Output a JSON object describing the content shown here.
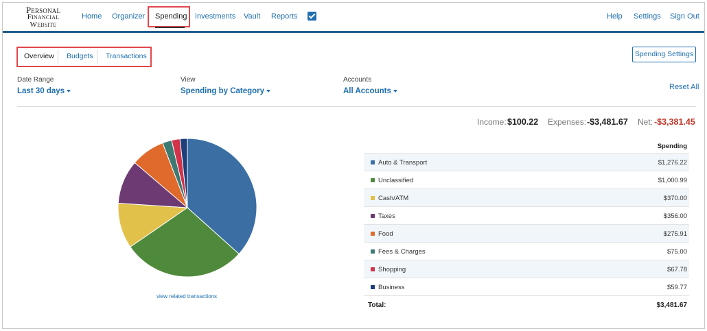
{
  "logo": {
    "line1": "Personal",
    "line2": "Financial",
    "line3": "Website"
  },
  "nav": {
    "home": "Home",
    "organizer": "Organizer",
    "spending": "Spending",
    "investments": "Investments",
    "vault": "Vault",
    "reports": "Reports",
    "help": "Help",
    "settings": "Settings",
    "signout": "Sign Out"
  },
  "subtabs": {
    "overview": "Overview",
    "budgets": "Budgets",
    "transactions": "Transactions"
  },
  "spending_settings": "Spending Settings",
  "filters": {
    "date_range": {
      "label": "Date Range",
      "value": "Last 30 days"
    },
    "view": {
      "label": "View",
      "value": "Spending by Category"
    },
    "accounts": {
      "label": "Accounts",
      "value": "All Accounts"
    },
    "reset": "Reset All"
  },
  "totals": {
    "income_label": "Income:",
    "income": "$100.22",
    "expenses_label": "Expenses:",
    "expenses": "-$3,481.67",
    "net_label": "Net:",
    "net": "-$3,381.45"
  },
  "view_related": "view related transactions",
  "table": {
    "header": "Spending",
    "rows": [
      {
        "category": "Auto & Transport",
        "amount": "$1,276.22",
        "value": 1276.22,
        "color": "#3b6fa3"
      },
      {
        "category": "Unclassified",
        "amount": "$1,000.99",
        "value": 1000.99,
        "color": "#4f8a3c"
      },
      {
        "category": "Cash/ATM",
        "amount": "$370.00",
        "value": 370.0,
        "color": "#e2c14b"
      },
      {
        "category": "Taxes",
        "amount": "$356.00",
        "value": 356.0,
        "color": "#6d3a73"
      },
      {
        "category": "Food",
        "amount": "$275.91",
        "value": 275.91,
        "color": "#e06a2b"
      },
      {
        "category": "Fees & Charges",
        "amount": "$75.00",
        "value": 75.0,
        "color": "#3d7a74"
      },
      {
        "category": "Shopping",
        "amount": "$67.78",
        "value": 67.78,
        "color": "#d2334a"
      },
      {
        "category": "Business",
        "amount": "$59.77",
        "value": 59.77,
        "color": "#1e3f7a"
      }
    ],
    "total_label": "Total:",
    "total": "$3,481.67"
  },
  "accent_color": "#1f6fb0"
}
